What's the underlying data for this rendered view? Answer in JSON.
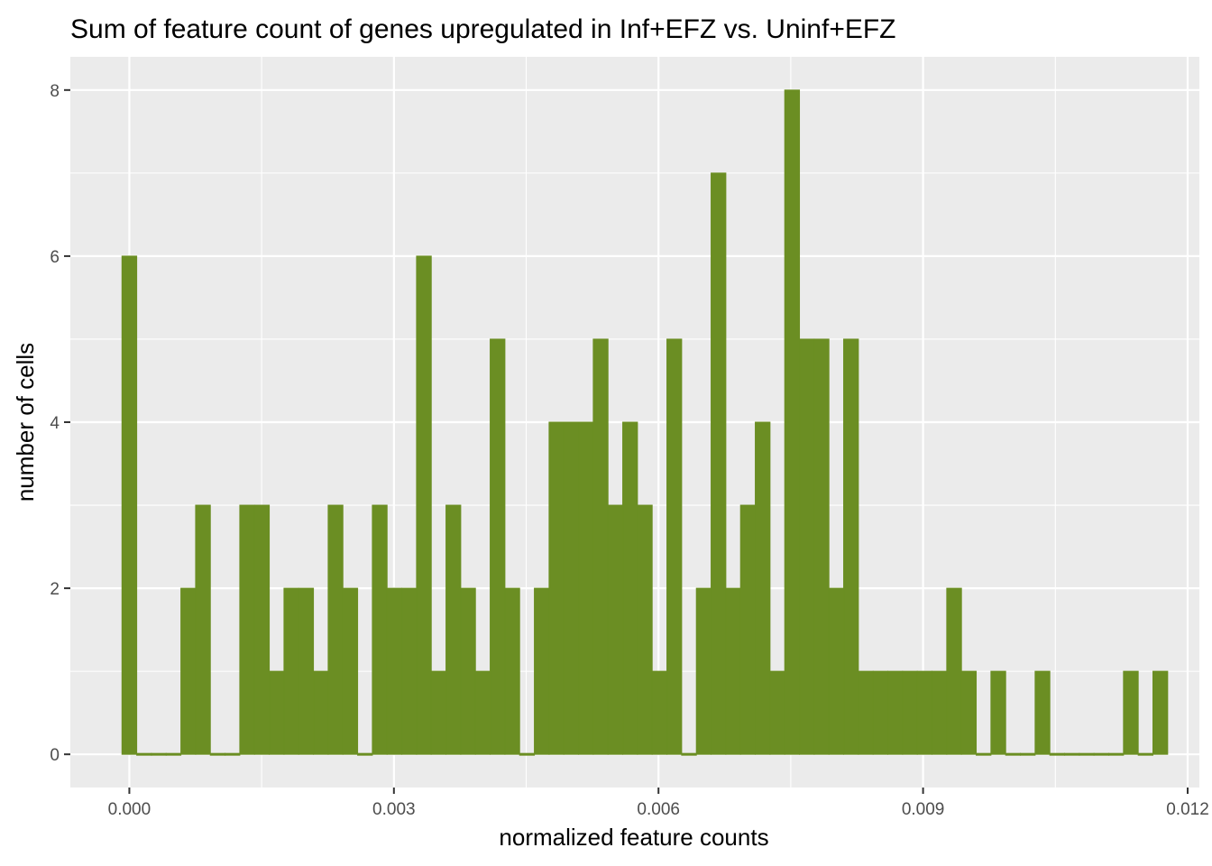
{
  "chart_data": {
    "type": "bar",
    "title": "Sum of feature count of genes upregulated in Inf+EFZ vs. Uninf+EFZ",
    "xlabel": "normalized feature counts",
    "ylabel": "number of cells",
    "bin_width": 0.000167,
    "x_first_bin_center": 0.0,
    "values": [
      6,
      0,
      0,
      0,
      2,
      3,
      0,
      0,
      3,
      3,
      1,
      2,
      2,
      1,
      3,
      2,
      0,
      3,
      2,
      2,
      6,
      1,
      3,
      2,
      1,
      5,
      2,
      0,
      2,
      4,
      4,
      4,
      5,
      3,
      4,
      3,
      1,
      5,
      0,
      2,
      7,
      2,
      3,
      4,
      1,
      8,
      5,
      5,
      2,
      5,
      1,
      1,
      1,
      1,
      1,
      1,
      2,
      1,
      0,
      1,
      0,
      0,
      1,
      0,
      0,
      0,
      0,
      0,
      1,
      0,
      1
    ],
    "xlim": [
      -0.000669,
      0.012133
    ],
    "ylim": [
      -0.4,
      8.4
    ],
    "x_ticks": [
      0.0,
      0.003,
      0.006,
      0.009,
      0.012
    ],
    "x_tick_labels": [
      "0.000",
      "0.003",
      "0.006",
      "0.009",
      "0.012"
    ],
    "y_ticks": [
      0,
      2,
      4,
      6,
      8
    ],
    "y_tick_labels": [
      "0",
      "2",
      "4",
      "6",
      "8"
    ],
    "fill_color": "#6b8e23",
    "panel_color": "#ebebeb",
    "grid_color": "#ffffff",
    "grid": true,
    "legend": "none"
  }
}
